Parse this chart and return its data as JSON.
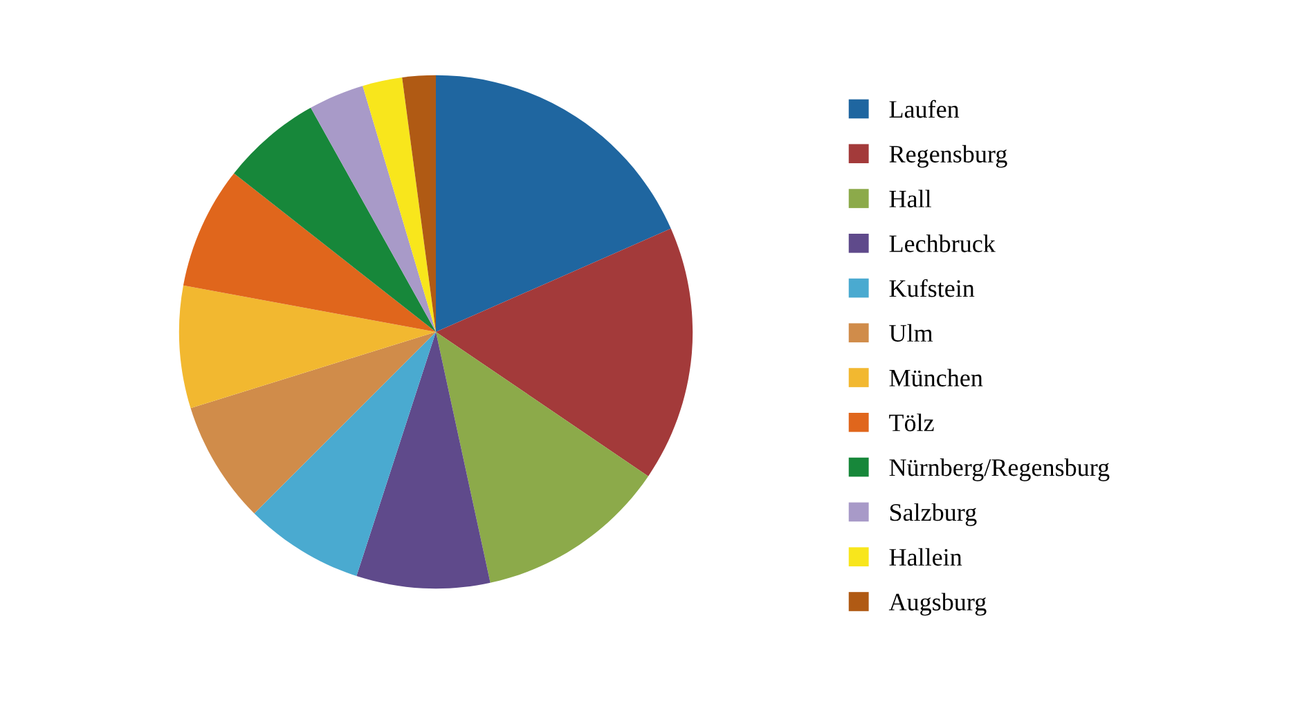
{
  "chart_data": {
    "type": "pie",
    "categories": [
      "Laufen",
      "Regensburg",
      "Hall",
      "Lechbruck",
      "Kufstein",
      "Ulm",
      "München",
      "Tölz",
      "Nürnberg/Regensburg",
      "Salzburg",
      "Hallein",
      "Augsburg"
    ],
    "values": [
      18.4,
      16.1,
      12.1,
      8.4,
      7.5,
      7.7,
      7.7,
      7.7,
      6.3,
      3.5,
      2.5,
      2.1
    ],
    "colors": [
      "#1f66a0",
      "#a33a3a",
      "#8caa4a",
      "#5f4a8b",
      "#4aaad0",
      "#d08c4a",
      "#f2b830",
      "#e0661c",
      "#17873a",
      "#a89ac8",
      "#f8e61c",
      "#b05a14"
    ],
    "legend": "right"
  }
}
